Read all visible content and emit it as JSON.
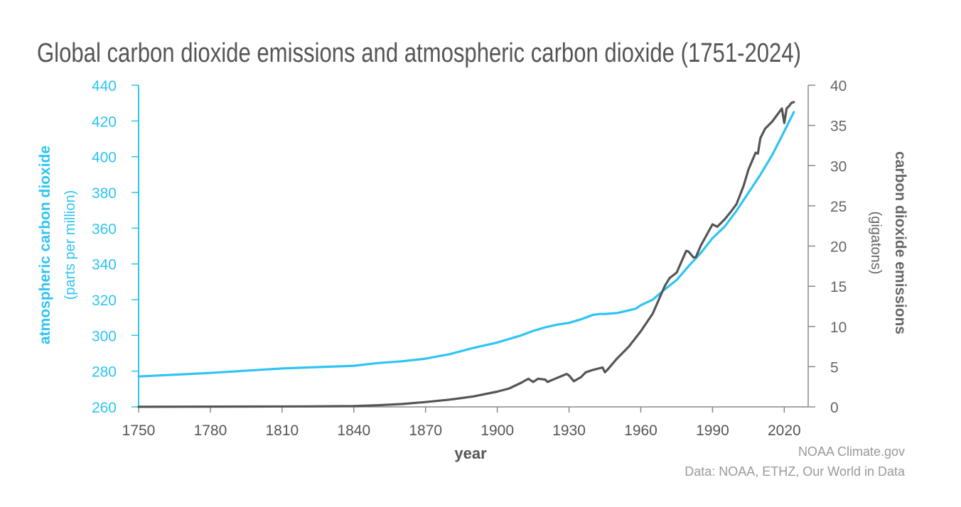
{
  "colors": {
    "co2_line": "#2ec4f3",
    "emissions_line": "#555555",
    "axis_left": "#2ec4f3",
    "axis_right": "#777777",
    "text_dark": "#555555",
    "text_muted": "#999999"
  },
  "credits": {
    "source": "NOAA Climate.gov",
    "data": "Data: NOAA, ETHZ, Our World in Data"
  },
  "chart_data": {
    "type": "line",
    "title": "Global carbon dioxide emissions and atmospheric carbon dioxide (1751-2024)",
    "xlabel": "year",
    "ylabel_left": "atmospheric carbon dioxide",
    "ylabel_left_sub": "(parts per million)",
    "ylabel_right": "carbon dioxide emissions",
    "ylabel_right_sub": "(gigatons)",
    "xlim": [
      1750,
      2030
    ],
    "ylim_left": [
      260,
      440
    ],
    "ylim_right": [
      0,
      40
    ],
    "x_ticks": [
      1750,
      1780,
      1810,
      1840,
      1870,
      1900,
      1930,
      1960,
      1990,
      2020
    ],
    "y_ticks_left": [
      260,
      280,
      300,
      320,
      340,
      360,
      380,
      400,
      420,
      440
    ],
    "y_ticks_right": [
      0,
      5,
      10,
      15,
      20,
      25,
      30,
      35,
      40
    ],
    "grid": false,
    "series": [
      {
        "name": "atmospheric carbon dioxide",
        "axis": "left",
        "x": [
          1750,
          1780,
          1810,
          1840,
          1850,
          1860,
          1870,
          1880,
          1890,
          1900,
          1910,
          1915,
          1920,
          1925,
          1930,
          1935,
          1940,
          1943,
          1945,
          1950,
          1955,
          1958,
          1960,
          1965,
          1970,
          1975,
          1980,
          1985,
          1990,
          1995,
          2000,
          2005,
          2010,
          2015,
          2020,
          2024
        ],
        "values": [
          277,
          279,
          281.5,
          283,
          284.5,
          285.5,
          287,
          289.5,
          293,
          296,
          300,
          302.5,
          304.5,
          306,
          307,
          309,
          311.5,
          312,
          312,
          312.5,
          314,
          315,
          316.9,
          320,
          325.7,
          331,
          338.8,
          346,
          354.4,
          360.8,
          369.7,
          379.8,
          389.9,
          401,
          414.2,
          425
        ]
      },
      {
        "name": "carbon dioxide emissions",
        "axis": "right",
        "x": [
          1750,
          1800,
          1820,
          1840,
          1850,
          1860,
          1870,
          1880,
          1890,
          1900,
          1905,
          1910,
          1913,
          1915,
          1917,
          1920,
          1921,
          1925,
          1929,
          1930,
          1932,
          1935,
          1937,
          1940,
          1944,
          1945,
          1946,
          1950,
          1955,
          1960,
          1965,
          1970,
          1972,
          1975,
          1979,
          1980,
          1982,
          1983,
          1985,
          1990,
          1992,
          1995,
          1998,
          2000,
          2003,
          2005,
          2008,
          2009,
          2010,
          2012,
          2015,
          2019,
          2020,
          2021,
          2022,
          2023,
          2024
        ],
        "values": [
          0.01,
          0.04,
          0.06,
          0.1,
          0.2,
          0.35,
          0.6,
          0.9,
          1.3,
          1.9,
          2.3,
          3.0,
          3.5,
          3.1,
          3.5,
          3.4,
          3.1,
          3.6,
          4.1,
          3.9,
          3.2,
          3.7,
          4.3,
          4.6,
          4.9,
          4.3,
          4.6,
          6.0,
          7.5,
          9.4,
          11.6,
          15.0,
          16.0,
          16.7,
          19.4,
          19.3,
          18.6,
          18.6,
          20.0,
          22.7,
          22.4,
          23.3,
          24.4,
          25.2,
          27.5,
          29.5,
          31.6,
          31.5,
          33.4,
          34.6,
          35.5,
          37.1,
          35.3,
          37.1,
          37.4,
          37.8,
          37.9
        ]
      }
    ]
  }
}
